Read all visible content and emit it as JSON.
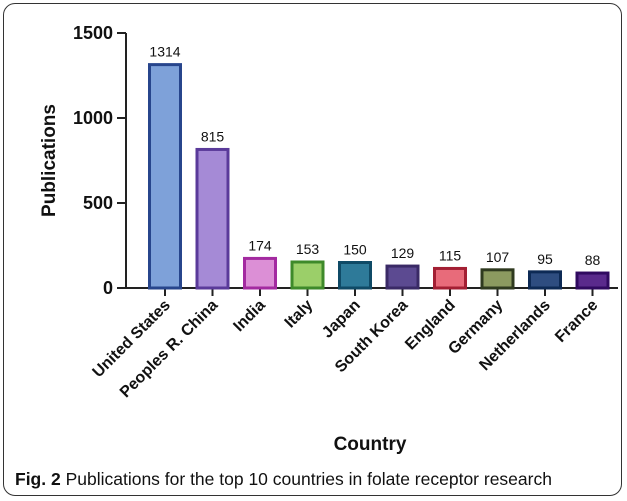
{
  "figure": {
    "caption_label": "Fig. 2",
    "caption_text": " Publications for the top 10 countries in folate receptor research"
  },
  "chart_data": {
    "type": "bar",
    "xlabel": "Country",
    "ylabel": "Publications",
    "ylim": [
      0,
      1500
    ],
    "yticks": [
      0,
      500,
      1000,
      1500
    ],
    "categories": [
      "United States",
      "Peoples R. China",
      "India",
      "Italy",
      "Japan",
      "South Korea",
      "England",
      "Germany",
      "Netherlands",
      "France"
    ],
    "values": [
      1314,
      815,
      174,
      153,
      150,
      129,
      115,
      107,
      95,
      88
    ],
    "fills": [
      "#7ea1d9",
      "#a58ad6",
      "#dc8fd6",
      "#9bcf69",
      "#2e7a99",
      "#5c4a91",
      "#e86b7a",
      "#8c9a60",
      "#2e4d80",
      "#5a2a8c"
    ],
    "strokes": [
      "#27458c",
      "#5a3a9a",
      "#a32aa0",
      "#3e8a2a",
      "#0f4a66",
      "#3a2a66",
      "#a31f33",
      "#2f3a1f",
      "#0d2a55",
      "#300a60"
    ],
    "data_labels": true,
    "grid": false,
    "legend": "none"
  }
}
